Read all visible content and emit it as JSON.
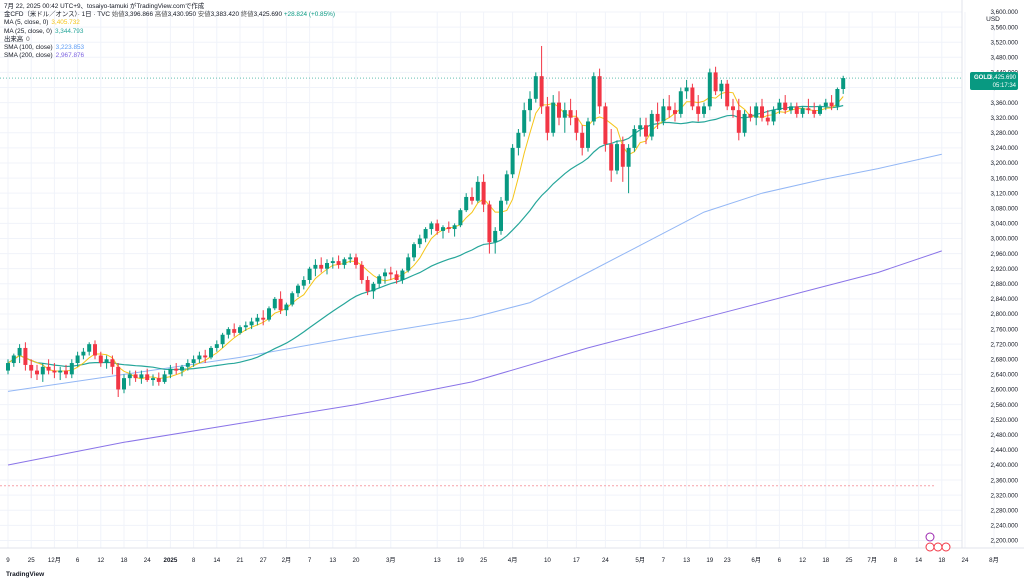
{
  "header": {
    "datetime": "7月 22, 2025 00:42 UTC+9、tosaiyo-tamuki がTradingView.comで作成",
    "symbol_line": "金CFD（米ドル／オンス）· 1日 · TVC",
    "ohlc": [
      {
        "label": "始値",
        "value": "3,396.866"
      },
      {
        "label": "高値",
        "value": "3,430.950"
      },
      {
        "label": "安値",
        "value": "3,383.420"
      },
      {
        "label": "終値",
        "value": "3,425.690"
      }
    ],
    "change": "+28.824 (+0.85%)"
  },
  "indicators": [
    {
      "label": "MA (5, close, 0)",
      "value": "3,405.732",
      "color": "#f5c518"
    },
    {
      "label": "MA (25, close, 0)",
      "value": "3,344.793",
      "color": "#26a69a"
    },
    {
      "label": "出来高",
      "value": "0",
      "color": "#555555"
    },
    {
      "label": "SMA (100, close)",
      "value": "3,223.853",
      "color": "#5b9cf6"
    },
    {
      "label": "SMA (200, close)",
      "value": "2,967.876",
      "color": "#7b61e0"
    }
  ],
  "brand": "TradingView",
  "chart_data": {
    "type": "candlestick",
    "currency": "USD",
    "ylim": [
      2180,
      3600
    ],
    "y_ticks": [
      2200,
      2240,
      2280,
      2320,
      2360,
      2400,
      2440,
      2480,
      2520,
      2560,
      2600,
      2640,
      2680,
      2720,
      2760,
      2800,
      2840,
      2880,
      2920,
      2960,
      3000,
      3040,
      3080,
      3120,
      3160,
      3200,
      3240,
      3280,
      3320,
      3360,
      3400,
      3440,
      3480,
      3520,
      3560,
      3600
    ],
    "x_ticks": [
      {
        "label": "9",
        "i": 0
      },
      {
        "label": "25",
        "i": 4
      },
      {
        "label": "12月",
        "i": 8
      },
      {
        "label": "6",
        "i": 12
      },
      {
        "label": "12",
        "i": 16
      },
      {
        "label": "18",
        "i": 20
      },
      {
        "label": "24",
        "i": 24
      },
      {
        "label": "2025",
        "i": 28
      },
      {
        "label": "8",
        "i": 32
      },
      {
        "label": "14",
        "i": 36
      },
      {
        "label": "21",
        "i": 40
      },
      {
        "label": "27",
        "i": 44
      },
      {
        "label": "2月",
        "i": 48
      },
      {
        "label": "7",
        "i": 52
      },
      {
        "label": "13",
        "i": 56
      },
      {
        "label": "20",
        "i": 60
      },
      {
        "label": "3月",
        "i": 66
      },
      {
        "label": "13",
        "i": 74
      },
      {
        "label": "19",
        "i": 78
      },
      {
        "label": "25",
        "i": 82
      },
      {
        "label": "4月",
        "i": 87
      },
      {
        "label": "10",
        "i": 93
      },
      {
        "label": "17",
        "i": 98
      },
      {
        "label": "24",
        "i": 103
      },
      {
        "label": "5月",
        "i": 109
      },
      {
        "label": "7",
        "i": 113
      },
      {
        "label": "13",
        "i": 117
      },
      {
        "label": "19",
        "i": 121
      },
      {
        "label": "23",
        "i": 124
      },
      {
        "label": "6月",
        "i": 129
      },
      {
        "label": "6",
        "i": 133
      },
      {
        "label": "12",
        "i": 137
      },
      {
        "label": "18",
        "i": 141
      },
      {
        "label": "25",
        "i": 145
      },
      {
        "label": "7月",
        "i": 149
      },
      {
        "label": "8",
        "i": 153
      },
      {
        "label": "14",
        "i": 157
      },
      {
        "label": "18",
        "i": 161
      },
      {
        "label": "24",
        "i": 165
      },
      {
        "label": "8月",
        "i": 170
      }
    ],
    "candles_ohlc": [
      [
        2650,
        2680,
        2640,
        2670
      ],
      [
        2670,
        2695,
        2660,
        2690
      ],
      [
        2690,
        2720,
        2670,
        2710
      ],
      [
        2710,
        2725,
        2650,
        2665
      ],
      [
        2665,
        2680,
        2630,
        2650
      ],
      [
        2650,
        2665,
        2625,
        2640
      ],
      [
        2640,
        2670,
        2620,
        2660
      ],
      [
        2660,
        2680,
        2640,
        2650
      ],
      [
        2650,
        2670,
        2630,
        2645
      ],
      [
        2645,
        2660,
        2625,
        2650
      ],
      [
        2650,
        2665,
        2630,
        2640
      ],
      [
        2640,
        2680,
        2630,
        2670
      ],
      [
        2670,
        2700,
        2660,
        2690
      ],
      [
        2690,
        2710,
        2680,
        2700
      ],
      [
        2700,
        2725,
        2690,
        2720
      ],
      [
        2720,
        2730,
        2680,
        2690
      ],
      [
        2690,
        2700,
        2660,
        2670
      ],
      [
        2670,
        2690,
        2655,
        2680
      ],
      [
        2680,
        2690,
        2640,
        2660
      ],
      [
        2660,
        2670,
        2580,
        2600
      ],
      [
        2600,
        2640,
        2590,
        2630
      ],
      [
        2630,
        2650,
        2610,
        2640
      ],
      [
        2640,
        2650,
        2620,
        2630
      ],
      [
        2630,
        2650,
        2615,
        2640
      ],
      [
        2640,
        2655,
        2620,
        2625
      ],
      [
        2625,
        2640,
        2610,
        2630
      ],
      [
        2630,
        2645,
        2610,
        2620
      ],
      [
        2620,
        2650,
        2615,
        2640
      ],
      [
        2640,
        2665,
        2630,
        2655
      ],
      [
        2655,
        2670,
        2640,
        2650
      ],
      [
        2650,
        2665,
        2635,
        2660
      ],
      [
        2660,
        2680,
        2650,
        2670
      ],
      [
        2670,
        2690,
        2660,
        2680
      ],
      [
        2680,
        2700,
        2670,
        2690
      ],
      [
        2690,
        2705,
        2670,
        2685
      ],
      [
        2685,
        2715,
        2680,
        2710
      ],
      [
        2710,
        2730,
        2700,
        2720
      ],
      [
        2720,
        2750,
        2710,
        2745
      ],
      [
        2745,
        2765,
        2735,
        2760
      ],
      [
        2760,
        2775,
        2740,
        2750
      ],
      [
        2750,
        2770,
        2745,
        2765
      ],
      [
        2765,
        2780,
        2755,
        2770
      ],
      [
        2770,
        2790,
        2760,
        2780
      ],
      [
        2780,
        2800,
        2770,
        2790
      ],
      [
        2790,
        2810,
        2770,
        2785
      ],
      [
        2785,
        2820,
        2780,
        2815
      ],
      [
        2815,
        2845,
        2810,
        2840
      ],
      [
        2840,
        2860,
        2800,
        2810
      ],
      [
        2810,
        2830,
        2795,
        2825
      ],
      [
        2825,
        2860,
        2820,
        2855
      ],
      [
        2855,
        2880,
        2845,
        2875
      ],
      [
        2875,
        2900,
        2865,
        2890
      ],
      [
        2890,
        2925,
        2880,
        2920
      ],
      [
        2920,
        2945,
        2900,
        2930
      ],
      [
        2930,
        2950,
        2910,
        2920
      ],
      [
        2920,
        2945,
        2905,
        2935
      ],
      [
        2935,
        2950,
        2920,
        2940
      ],
      [
        2940,
        2955,
        2920,
        2930
      ],
      [
        2930,
        2950,
        2920,
        2945
      ],
      [
        2945,
        2960,
        2935,
        2950
      ],
      [
        2950,
        2960,
        2920,
        2930
      ],
      [
        2930,
        2940,
        2880,
        2890
      ],
      [
        2890,
        2900,
        2850,
        2860
      ],
      [
        2860,
        2885,
        2840,
        2880
      ],
      [
        2880,
        2905,
        2870,
        2900
      ],
      [
        2900,
        2920,
        2880,
        2910
      ],
      [
        2910,
        2925,
        2890,
        2905
      ],
      [
        2905,
        2915,
        2880,
        2890
      ],
      [
        2890,
        2920,
        2880,
        2915
      ],
      [
        2915,
        2960,
        2910,
        2950
      ],
      [
        2950,
        2990,
        2940,
        2985
      ],
      [
        2985,
        3010,
        2975,
        3000
      ],
      [
        3000,
        3030,
        2990,
        3025
      ],
      [
        3025,
        3045,
        3010,
        3040
      ],
      [
        3040,
        3050,
        3010,
        3020
      ],
      [
        3020,
        3035,
        3000,
        3030
      ],
      [
        3030,
        3045,
        3015,
        3025
      ],
      [
        3025,
        3040,
        3005,
        3035
      ],
      [
        3035,
        3080,
        3030,
        3075
      ],
      [
        3075,
        3120,
        3070,
        3110
      ],
      [
        3110,
        3135,
        3090,
        3100
      ],
      [
        3100,
        3165,
        3095,
        3150
      ],
      [
        3150,
        3170,
        3070,
        3090
      ],
      [
        3090,
        3100,
        2960,
        2990
      ],
      [
        2990,
        3030,
        2960,
        3020
      ],
      [
        3020,
        3110,
        3010,
        3100
      ],
      [
        3100,
        3180,
        3090,
        3170
      ],
      [
        3170,
        3250,
        3160,
        3240
      ],
      [
        3240,
        3290,
        3220,
        3280
      ],
      [
        3280,
        3360,
        3270,
        3340
      ],
      [
        3340,
        3390,
        3310,
        3370
      ],
      [
        3370,
        3440,
        3360,
        3430
      ],
      [
        3430,
        3510,
        3330,
        3350
      ],
      [
        3350,
        3375,
        3260,
        3280
      ],
      [
        3280,
        3380,
        3270,
        3360
      ],
      [
        3360,
        3390,
        3300,
        3320
      ],
      [
        3320,
        3360,
        3280,
        3340
      ],
      [
        3340,
        3370,
        3300,
        3320
      ],
      [
        3320,
        3340,
        3260,
        3280
      ],
      [
        3280,
        3300,
        3220,
        3240
      ],
      [
        3240,
        3320,
        3230,
        3310
      ],
      [
        3310,
        3440,
        3300,
        3430
      ],
      [
        3430,
        3450,
        3330,
        3350
      ],
      [
        3350,
        3360,
        3230,
        3250
      ],
      [
        3250,
        3290,
        3150,
        3180
      ],
      [
        3180,
        3260,
        3170,
        3250
      ],
      [
        3250,
        3270,
        3150,
        3190
      ],
      [
        3190,
        3250,
        3120,
        3240
      ],
      [
        3240,
        3300,
        3230,
        3290
      ],
      [
        3290,
        3320,
        3270,
        3300
      ],
      [
        3300,
        3320,
        3250,
        3270
      ],
      [
        3270,
        3340,
        3260,
        3330
      ],
      [
        3330,
        3360,
        3290,
        3310
      ],
      [
        3310,
        3370,
        3300,
        3350
      ],
      [
        3350,
        3380,
        3320,
        3340
      ],
      [
        3340,
        3360,
        3310,
        3330
      ],
      [
        3330,
        3400,
        3320,
        3390
      ],
      [
        3390,
        3420,
        3370,
        3400
      ],
      [
        3400,
        3410,
        3340,
        3350
      ],
      [
        3350,
        3380,
        3310,
        3330
      ],
      [
        3330,
        3360,
        3320,
        3350
      ],
      [
        3350,
        3450,
        3340,
        3440
      ],
      [
        3440,
        3455,
        3380,
        3390
      ],
      [
        3390,
        3420,
        3370,
        3410
      ],
      [
        3410,
        3420,
        3340,
        3350
      ],
      [
        3350,
        3370,
        3320,
        3340
      ],
      [
        3340,
        3370,
        3260,
        3280
      ],
      [
        3280,
        3340,
        3270,
        3330
      ],
      [
        3330,
        3350,
        3310,
        3320
      ],
      [
        3320,
        3360,
        3300,
        3350
      ],
      [
        3350,
        3370,
        3310,
        3320
      ],
      [
        3320,
        3340,
        3300,
        3310
      ],
      [
        3310,
        3350,
        3300,
        3340
      ],
      [
        3340,
        3370,
        3330,
        3360
      ],
      [
        3360,
        3380,
        3330,
        3340
      ],
      [
        3340,
        3360,
        3330,
        3350
      ],
      [
        3350,
        3360,
        3320,
        3330
      ],
      [
        3330,
        3350,
        3320,
        3345
      ],
      [
        3345,
        3370,
        3330,
        3340
      ],
      [
        3340,
        3360,
        3320,
        3330
      ],
      [
        3330,
        3355,
        3325,
        3350
      ],
      [
        3350,
        3370,
        3340,
        3360
      ],
      [
        3360,
        3380,
        3340,
        3350
      ],
      [
        3350,
        3400,
        3340,
        3396
      ],
      [
        3396,
        3431,
        3383,
        3425
      ]
    ],
    "sma100_points": [
      [
        0,
        2595
      ],
      [
        20,
        2640
      ],
      [
        40,
        2685
      ],
      [
        60,
        2740
      ],
      [
        80,
        2790
      ],
      [
        90,
        2830
      ],
      [
        100,
        2910
      ],
      [
        110,
        2990
      ],
      [
        120,
        3070
      ],
      [
        130,
        3120
      ],
      [
        140,
        3155
      ],
      [
        150,
        3185
      ],
      [
        161,
        3223
      ]
    ],
    "sma200_points": [
      [
        0,
        2400
      ],
      [
        20,
        2460
      ],
      [
        40,
        2510
      ],
      [
        60,
        2560
      ],
      [
        80,
        2620
      ],
      [
        100,
        2710
      ],
      [
        120,
        2790
      ],
      [
        140,
        2870
      ],
      [
        150,
        2910
      ],
      [
        161,
        2967
      ]
    ],
    "current_price": "3,425.690",
    "symbol_tag": "GOLD",
    "countdown": "05:17:34",
    "reference_level": 2345
  }
}
